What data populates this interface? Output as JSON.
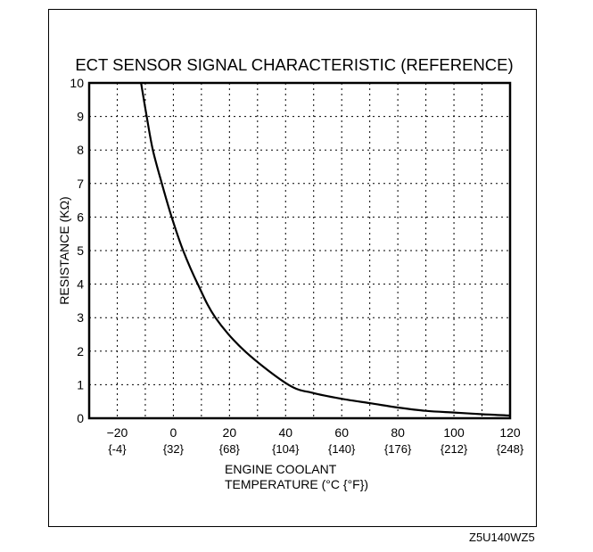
{
  "chart_data": {
    "type": "line",
    "title": "ECT SENSOR SIGNAL CHARACTERISTIC (REFERENCE)",
    "xlabel_line1": "ENGINE COOLANT",
    "xlabel_line2": "TEMPERATURE  (°C {°F})",
    "ylabel": "RESISTANCE (KΩ)",
    "xlim": [
      -30,
      120
    ],
    "ylim": [
      0,
      10
    ],
    "grid": true,
    "x_grid_step": 10,
    "y_grid_step": 1,
    "x_ticks": [
      {
        "c": -20,
        "label": "−20",
        "f_label": "{-4}"
      },
      {
        "c": 0,
        "label": "0",
        "f_label": "{32}"
      },
      {
        "c": 20,
        "label": "20",
        "f_label": "{68}"
      },
      {
        "c": 40,
        "label": "40",
        "f_label": "{104}"
      },
      {
        "c": 60,
        "label": "60",
        "f_label": "{140}"
      },
      {
        "c": 80,
        "label": "80",
        "f_label": "{176}"
      },
      {
        "c": 100,
        "label": "100",
        "f_label": "{212}"
      },
      {
        "c": 120,
        "label": "120",
        "f_label": "{248}"
      }
    ],
    "y_ticks": [
      {
        "v": 0,
        "label": "0"
      },
      {
        "v": 1,
        "label": "1"
      },
      {
        "v": 2,
        "label": "2"
      },
      {
        "v": 3,
        "label": "3"
      },
      {
        "v": 4,
        "label": "4"
      },
      {
        "v": 5,
        "label": "5"
      },
      {
        "v": 6,
        "label": "6"
      },
      {
        "v": 7,
        "label": "7"
      },
      {
        "v": 8,
        "label": "8"
      },
      {
        "v": 9,
        "label": "9"
      },
      {
        "v": 10,
        "label": "10"
      }
    ],
    "series": [
      {
        "name": "ECT sensor resistance",
        "color": "#000000",
        "x": [
          -11.5,
          -9.5,
          -7.3,
          -4.1,
          -0.6,
          3.5,
          8.7,
          15,
          25.5,
          41,
          50,
          60,
          70,
          80,
          90,
          100,
          110,
          120
        ],
        "y": [
          10,
          9,
          8,
          7,
          6,
          5,
          4,
          3,
          2,
          1,
          0.75,
          0.58,
          0.45,
          0.32,
          0.22,
          0.17,
          0.12,
          0.08
        ]
      }
    ]
  },
  "figure_code": "Z5U140WZ5"
}
